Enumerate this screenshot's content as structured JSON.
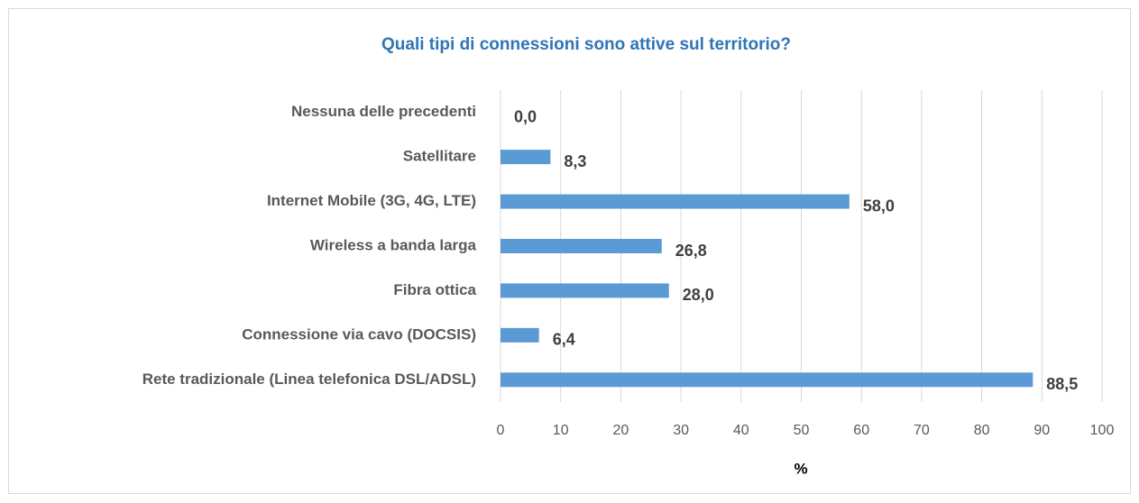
{
  "chart_data": {
    "type": "hbar",
    "title": "Quali tipi di connessioni sono attive sul territorio?",
    "x_label": "%",
    "categories": [
      "Nessuna delle precedenti",
      "Satellitare",
      "Internet Mobile (3G, 4G, LTE)",
      "Wireless a banda larga",
      "Fibra ottica",
      "Connessione via cavo (DOCSIS)",
      "Rete tradizionale (Linea telefonica DSL/ADSL)"
    ],
    "values": [
      0.0,
      8.3,
      58.0,
      26.8,
      28.0,
      6.4,
      88.5
    ],
    "value_labels": [
      "0,0",
      "8,3",
      "58,0",
      "26,8",
      "28,0",
      "6,4",
      "88,5"
    ],
    "color": "#5b9bd5",
    "xlim": [
      0,
      100
    ],
    "xticks": [
      0,
      10,
      20,
      30,
      40,
      50,
      60,
      70,
      80,
      90,
      100
    ],
    "grid": true
  }
}
